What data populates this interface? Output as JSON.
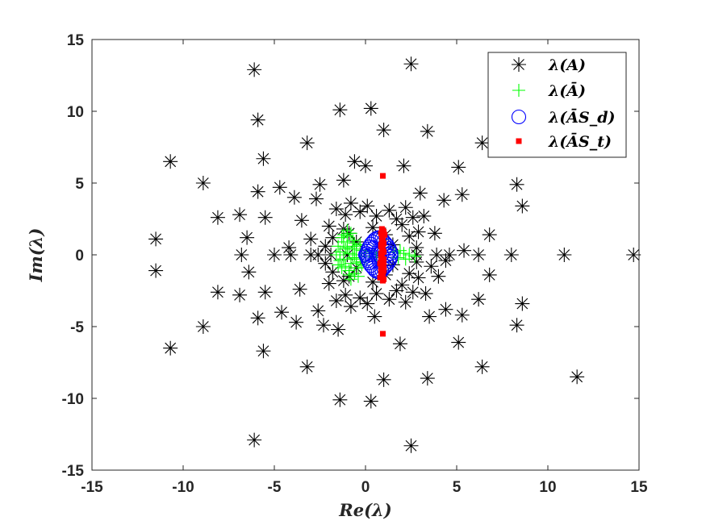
{
  "chart_data": {
    "type": "scatter",
    "xlabel": "Re(λ)",
    "ylabel": "Im(λ)",
    "xlim": [
      -15,
      15
    ],
    "ylim": [
      -15,
      15
    ],
    "xticks": [
      "-15",
      "-10",
      "-5",
      "0",
      "5",
      "10",
      "15"
    ],
    "yticks": [
      "-15",
      "-10",
      "-5",
      "0",
      "5",
      "10",
      "15"
    ],
    "grid": false,
    "legend_position": "top-right",
    "series": [
      {
        "name": "λ(A)",
        "marker": "asterisk",
        "color": "#000000",
        "x": [
          -6.1,
          2.5,
          -5.9,
          -1.4,
          0.3,
          1.0,
          -3.2,
          3.4,
          6.4,
          -10.7,
          -8.9,
          -5.6,
          -5.9,
          -4.7,
          -3.9,
          -2.5,
          -1.2,
          -0.6,
          0.0,
          2.1,
          3.0,
          4.3,
          5.1,
          5.3,
          8.3,
          8.6,
          -8.1,
          -6.9,
          -5.5,
          -6.5,
          -11.5,
          -11.5,
          -6.8,
          -5.0,
          -4.1,
          -3.0,
          -1.9,
          -1.0,
          -2.6,
          2.8,
          3.9,
          4.6,
          5.4,
          6.2,
          6.8,
          8.0,
          10.9,
          14.7,
          -8.1,
          -6.9,
          -6.4,
          -5.5,
          -4.6,
          -3.8,
          -2.3,
          -1.5,
          0.5,
          1.9,
          3.5,
          4.4,
          5.3,
          6.2,
          6.8,
          8.6,
          -8.9,
          -10.7,
          -5.9,
          -6.1,
          -5.6,
          -3.2,
          -1.4,
          0.3,
          1.0,
          2.5,
          3.4,
          5.1,
          6.4,
          8.3,
          11.6,
          -1.6,
          -1.1,
          -0.8,
          -0.3,
          0.1,
          0.6,
          1.3,
          1.7,
          2.2,
          2.6,
          -2.0,
          -1.2,
          2.0,
          2.9,
          -1.8,
          -0.9,
          0.4,
          1.1,
          2.4,
          -2.2,
          1.5,
          -0.5,
          2.8,
          -1.6,
          -1.1,
          -0.8,
          -0.3,
          0.1,
          0.6,
          1.3,
          1.7,
          2.2,
          2.6,
          -2.0,
          -1.2,
          2.0,
          2.9,
          -1.8,
          -0.9,
          0.4,
          1.1,
          2.4,
          -2.2,
          1.5,
          -0.5,
          2.8,
          -3.5,
          -2.7,
          3.2,
          3.8,
          -3.6,
          -2.6,
          3.3,
          4.0,
          -3.0,
          3.6,
          -4.2,
          4.4
        ],
        "y": [
          12.9,
          13.3,
          9.4,
          10.1,
          10.2,
          8.7,
          7.8,
          8.6,
          7.8,
          6.5,
          5.0,
          6.7,
          4.4,
          4.7,
          4.0,
          4.9,
          5.2,
          6.5,
          6.2,
          6.2,
          4.3,
          3.8,
          6.1,
          4.2,
          4.9,
          3.4,
          2.6,
          2.8,
          2.6,
          1.2,
          1.1,
          -1.1,
          0.0,
          0.0,
          0.0,
          0.0,
          0.0,
          0.0,
          0.0,
          0.0,
          0.0,
          0.0,
          0.3,
          0.0,
          1.4,
          0.0,
          0.0,
          0.0,
          -2.6,
          -2.8,
          -1.2,
          -2.6,
          -4.0,
          -4.7,
          -4.9,
          -5.2,
          -4.3,
          -6.2,
          -4.3,
          -3.8,
          -4.2,
          -3.1,
          -1.4,
          -3.4,
          -5.0,
          -6.5,
          -4.4,
          -12.9,
          -6.7,
          -7.8,
          -10.1,
          -10.2,
          -8.7,
          -13.3,
          -8.6,
          -6.1,
          -7.8,
          -4.9,
          -8.5,
          3.2,
          2.8,
          3.6,
          3.0,
          3.4,
          2.7,
          3.1,
          2.5,
          3.3,
          2.6,
          2.0,
          1.8,
          2.1,
          1.6,
          1.2,
          1.5,
          1.9,
          1.4,
          1.3,
          0.6,
          0.7,
          0.9,
          0.5,
          -3.2,
          -2.8,
          -3.6,
          -3.0,
          -3.4,
          -2.7,
          -3.1,
          -2.5,
          -3.3,
          -2.6,
          -2.0,
          -1.8,
          -2.1,
          -1.6,
          -1.2,
          -1.5,
          -1.9,
          -1.4,
          -1.3,
          -0.6,
          -0.7,
          -0.9,
          -0.5,
          2.4,
          3.9,
          2.7,
          1.5,
          -2.4,
          -3.9,
          -2.7,
          -1.5,
          1.1,
          -0.8,
          0.5,
          -0.4
        ]
      },
      {
        "name": "λ(Ā)",
        "marker": "plus",
        "color": "#00ff00",
        "x": [
          -1.6,
          -1.4,
          -1.2,
          -1.0,
          -0.8,
          -0.6,
          -0.4,
          -0.2,
          0.0,
          0.2,
          -1.5,
          -1.1,
          -0.7,
          -0.3,
          -1.3,
          -0.9,
          -0.5,
          -1.4,
          -1.0,
          -0.6,
          -0.2,
          -1.2,
          -0.8,
          -0.4,
          -1.5,
          -1.1,
          -0.7,
          -0.3,
          -1.3,
          -0.9,
          -0.5,
          -1.0,
          -0.8,
          -0.6,
          -1.2,
          -0.9,
          -0.7,
          0.4,
          0.6,
          0.8,
          1.6,
          1.8,
          2.1,
          2.4,
          2.7,
          1.9,
          2.2
        ],
        "y": [
          0.0,
          0.2,
          -0.3,
          0.5,
          -0.6,
          0.8,
          -0.9,
          0.3,
          -0.1,
          0.1,
          0.6,
          -0.8,
          1.0,
          -0.5,
          1.2,
          -1.1,
          0.4,
          -0.4,
          1.3,
          -1.3,
          -0.7,
          0.9,
          1.5,
          -1.5,
          -0.7,
          0.4,
          -0.2,
          0.7,
          -0.9,
          0.1,
          -0.3,
          1.7,
          -1.7,
          0.0,
          1.4,
          -1.4,
          0.6,
          0.2,
          -0.2,
          0.0,
          0.2,
          -0.2,
          0.1,
          0.0,
          -0.1,
          0.3,
          -0.3
        ]
      },
      {
        "name": "λ(ĀS_d)",
        "marker": "circle",
        "color": "#0000ff",
        "x": [
          0.05,
          0.1,
          0.15,
          0.2,
          0.3,
          0.4,
          0.5,
          0.6,
          0.7,
          0.8,
          0.9,
          1.0,
          1.1,
          1.2,
          1.3,
          1.35,
          1.4,
          0.05,
          0.1,
          0.15,
          0.2,
          0.3,
          0.4,
          0.5,
          0.6,
          0.7,
          0.8,
          0.9,
          1.0,
          1.1,
          1.2,
          1.3,
          1.35,
          1.4,
          0.0,
          0.3,
          0.6,
          0.9,
          1.2,
          0.45,
          0.75,
          1.05
        ],
        "y": [
          0.1,
          0.25,
          0.4,
          0.55,
          0.75,
          0.9,
          1.05,
          1.15,
          1.2,
          1.2,
          1.1,
          0.95,
          0.8,
          0.65,
          0.45,
          0.3,
          0.1,
          -0.1,
          -0.25,
          -0.4,
          -0.55,
          -0.75,
          -0.9,
          -1.05,
          -1.15,
          -1.2,
          -1.2,
          -1.1,
          -0.95,
          -0.8,
          -0.65,
          -0.45,
          -0.3,
          -0.1,
          0.0,
          0.0,
          0.0,
          0.0,
          0.0,
          0.5,
          -0.5,
          0.4
        ]
      },
      {
        "name": "λ(ĀS_t)",
        "marker": "square",
        "color": "#ff0000",
        "x": [
          0.95,
          0.95,
          0.9,
          1.0,
          1.05,
          0.95,
          0.9,
          1.0,
          0.85,
          0.95,
          1.0,
          0.9,
          0.85,
          0.95,
          0.8,
          0.9,
          1.0,
          0.85,
          0.9,
          0.8,
          0.95,
          0.85,
          0.9,
          0.95,
          1.0,
          0.9,
          0.95,
          0.85,
          1.0,
          0.9,
          0.85,
          0.95,
          1.0,
          0.9,
          0.95,
          0.85,
          0.9,
          0.95,
          1.0
        ],
        "y": [
          5.5,
          -5.5,
          1.8,
          1.6,
          1.4,
          1.2,
          1.0,
          0.8,
          0.6,
          0.4,
          0.2,
          0.0,
          -0.2,
          -0.4,
          -0.6,
          -0.8,
          -1.0,
          -1.2,
          -1.4,
          -1.6,
          -1.8,
          0.1,
          -0.1,
          0.3,
          -0.3,
          0.5,
          -0.5,
          0.7,
          -0.7,
          0.9,
          -0.9,
          1.1,
          -1.1,
          1.3,
          -1.3,
          1.5,
          -1.5,
          1.7,
          -1.7
        ]
      }
    ]
  }
}
